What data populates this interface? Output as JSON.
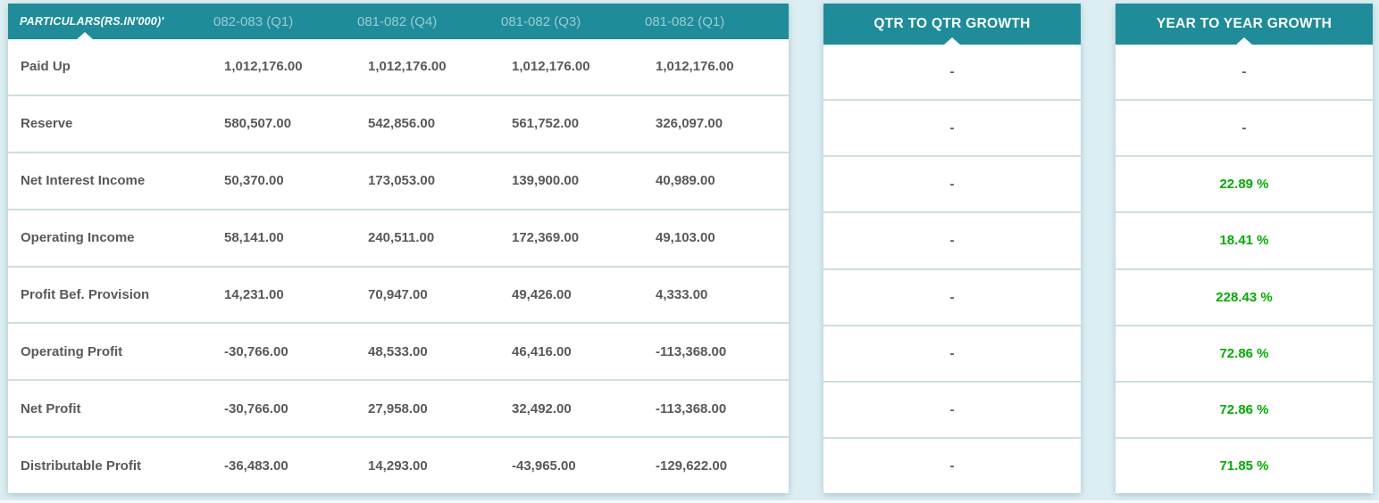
{
  "colors": {
    "header_teal": "#1e8c99",
    "page_background": "#ddeef2",
    "growth_green": "#00ad00",
    "value_text": "#58595b",
    "period_header_text": "#9ccbd4"
  },
  "main_table": {
    "header": {
      "particulars_label": "PARTICULARS(RS.IN'000)'",
      "period_columns": [
        "082-083 (Q1)",
        "081-082 (Q4)",
        "081-082 (Q3)",
        "081-082 (Q1)"
      ]
    },
    "rows": [
      {
        "label": "Paid Up",
        "values": [
          "1,012,176.00",
          "1,012,176.00",
          "1,012,176.00",
          "1,012,176.00"
        ],
        "qtr_growth": "-",
        "year_growth": "-"
      },
      {
        "label": "Reserve",
        "values": [
          "580,507.00",
          "542,856.00",
          "561,752.00",
          "326,097.00"
        ],
        "qtr_growth": "-",
        "year_growth": "-"
      },
      {
        "label": "Net Interest Income",
        "values": [
          "50,370.00",
          "173,053.00",
          "139,900.00",
          "40,989.00"
        ],
        "qtr_growth": "-",
        "year_growth": "22.89 %"
      },
      {
        "label": "Operating Income",
        "values": [
          "58,141.00",
          "240,511.00",
          "172,369.00",
          "49,103.00"
        ],
        "qtr_growth": "-",
        "year_growth": "18.41 %"
      },
      {
        "label": "Profit Bef. Provision",
        "values": [
          "14,231.00",
          "70,947.00",
          "49,426.00",
          "4,333.00"
        ],
        "qtr_growth": "-",
        "year_growth": "228.43 %"
      },
      {
        "label": "Operating Profit",
        "values": [
          "-30,766.00",
          "48,533.00",
          "46,416.00",
          "-113,368.00"
        ],
        "qtr_growth": "-",
        "year_growth": "72.86 %"
      },
      {
        "label": "Net Profit",
        "values": [
          "-30,766.00",
          "27,958.00",
          "32,492.00",
          "-113,368.00"
        ],
        "qtr_growth": "-",
        "year_growth": "72.86 %"
      },
      {
        "label": "Distributable Profit",
        "values": [
          "-36,483.00",
          "14,293.00",
          "-43,965.00",
          "-129,622.00"
        ],
        "qtr_growth": "-",
        "year_growth": "71.85 %"
      }
    ]
  },
  "qtr_growth_panel": {
    "title": "QTR TO QTR GROWTH"
  },
  "year_growth_panel": {
    "title": "YEAR TO YEAR GROWTH"
  }
}
